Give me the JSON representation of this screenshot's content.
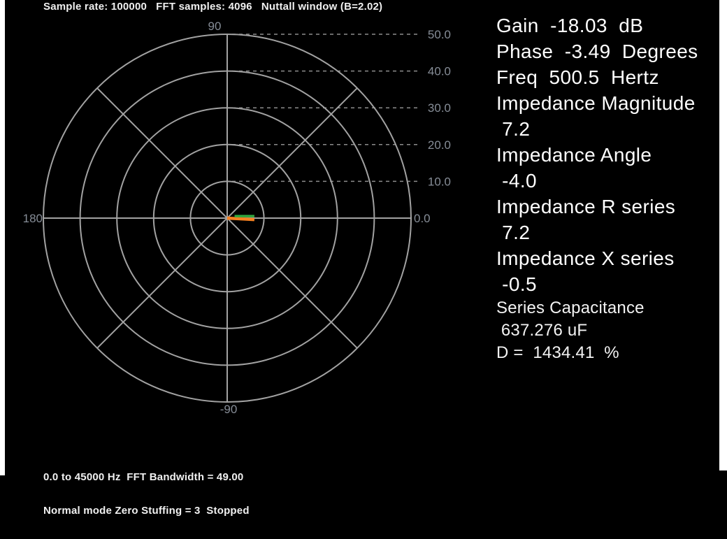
{
  "header": {
    "text": "Sample rate: 100000   FFT samples: 4096   Nuttall window (B=2.02)"
  },
  "chart_data": {
    "type": "polar",
    "title": "Sample rate: 100000   FFT samples: 4096   Nuttall window (B=2.02)",
    "radial_range": [
      0,
      50
    ],
    "radial_ticks": [
      {
        "value": 0,
        "label": "0.0"
      },
      {
        "value": 10,
        "label": "10.0"
      },
      {
        "value": 20,
        "label": "20.0"
      },
      {
        "value": 30,
        "label": "30.0"
      },
      {
        "value": 40,
        "label": "40.0"
      },
      {
        "value": 50,
        "label": "50.0"
      }
    ],
    "angle_labels": [
      {
        "angle_deg": 90,
        "label": "90"
      },
      {
        "angle_deg": 180,
        "label": "180"
      },
      {
        "angle_deg": -90,
        "label": "-90"
      }
    ],
    "spoke_step_deg": 45,
    "grid": true,
    "colors": {
      "grid": "#a2a2a2",
      "dash": "#8d8d8d",
      "labels": "#868d97"
    },
    "series": [
      {
        "name": "impedance-vector",
        "color": "#f58020",
        "width": 4.5,
        "points_units": [
          [
            0,
            0
          ],
          [
            7.4,
            -0.4
          ]
        ],
        "magnitude": 7.2,
        "angle_deg": -4.0
      },
      {
        "name": "overlay-marker",
        "color": "#33a93f",
        "width": 3.5,
        "points_units": [
          [
            2.0,
            0.55
          ],
          [
            7.4,
            0.55
          ]
        ]
      }
    ]
  },
  "readout": {
    "large_lines": [
      "Gain  -18.03  dB",
      "Phase  -3.49  Degrees",
      "Freq  500.5  Hertz",
      "Impedance Magnitude",
      " 7.2",
      "Impedance Angle",
      " -4.0",
      "Impedance R series",
      " 7.2",
      "Impedance X series",
      " -0.5"
    ],
    "small_lines": [
      "Series Capacitance",
      " 637.276 uF",
      "D =  1434.41  %"
    ],
    "values": {
      "gain_db": -18.03,
      "phase_degrees": -3.49,
      "freq_hertz": 500.5,
      "impedance_magnitude": 7.2,
      "impedance_angle": -4.0,
      "impedance_r_series": 7.2,
      "impedance_x_series": -0.5,
      "series_capacitance": "637.276 uF",
      "d_percent": 1434.41
    }
  },
  "footer": {
    "line1": "0.0 to 45000 Hz  FFT Bandwidth = 49.00",
    "line2": "Normal mode Zero Stuffing = 3  Stopped"
  }
}
